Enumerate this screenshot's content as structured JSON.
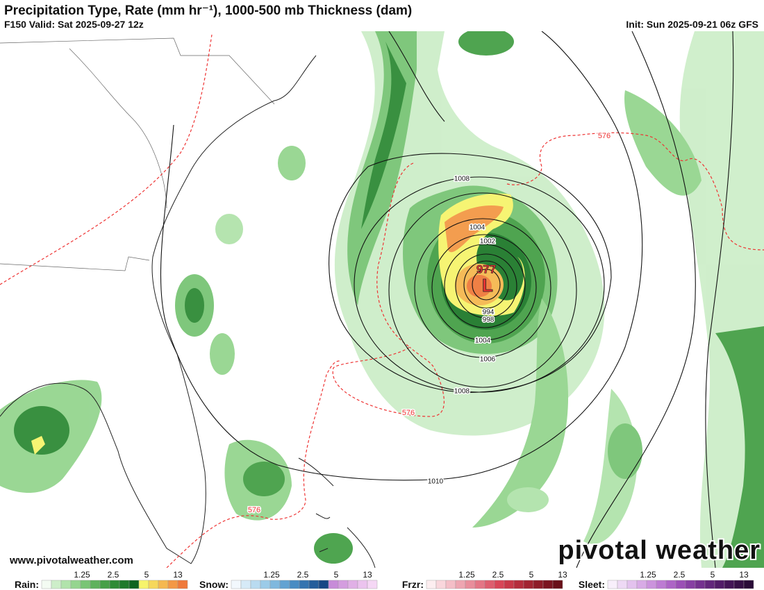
{
  "header": {
    "title": "Precipitation Type, Rate (mm hr⁻¹), 1000-500 mb Thickness (dam)",
    "valid": "F150 Valid: Sat 2025-09-27 12z",
    "init": "Init: Sun 2025-09-21 06z GFS"
  },
  "map": {
    "low_symbol": "L",
    "low_pressure": "977",
    "isobar_labels": [
      "1008",
      "1004",
      "1002",
      "994",
      "998",
      "1004",
      "1006",
      "1008",
      "1010"
    ],
    "thickness_labels": [
      "576",
      "576",
      "576"
    ]
  },
  "footer": {
    "website": "www.pivotalweather.com",
    "logo": "pivotal weather"
  },
  "legend": [
    {
      "label": "Rain:",
      "ticks": [
        "1.25",
        "2.5",
        "5",
        "13"
      ],
      "colors": [
        "#f3fbf2",
        "#cdeec9",
        "#b1e3ab",
        "#95d58f",
        "#79c575",
        "#5fb25d",
        "#46a047",
        "#2f8b36",
        "#1f7a2b",
        "#0f6420",
        "#f6f46c",
        "#f6d75b",
        "#f5b850",
        "#f39846",
        "#ef7a3c"
      ]
    },
    {
      "label": "Snow:",
      "ticks": [
        "1.25",
        "2.5",
        "5",
        "13"
      ],
      "colors": [
        "#f2f8fd",
        "#d6eaf7",
        "#b9dbf0",
        "#9ccbe8",
        "#7fb8de",
        "#62a3d2",
        "#488cc3",
        "#3474b0",
        "#235d9b",
        "#164785",
        "#c78bd8",
        "#d49ddf",
        "#e0b0e6",
        "#ebc3ee",
        "#f5d7f5"
      ]
    },
    {
      "label": "Frzr:",
      "ticks": [
        "1.25",
        "2.5",
        "5",
        "13"
      ],
      "colors": [
        "#fdeef0",
        "#f9d6dc",
        "#f4bec7",
        "#eea5b1",
        "#e98d9b",
        "#e47585",
        "#de5d6e",
        "#d84557",
        "#c83848",
        "#b52d3c",
        "#a22431",
        "#8e1c28",
        "#7b1520",
        "#691019"
      ]
    },
    {
      "label": "Sleet:",
      "ticks": [
        "1.25",
        "2.5",
        "5",
        "13"
      ],
      "colors": [
        "#f8effb",
        "#eed9f5",
        "#e3c2ee",
        "#d8abe6",
        "#cb93dd",
        "#bd7bd3",
        "#ad64c6",
        "#9b4fb6",
        "#873fa3",
        "#74318f",
        "#62267b",
        "#521c68",
        "#431556",
        "#361046",
        "#2a0c38"
      ]
    }
  ]
}
